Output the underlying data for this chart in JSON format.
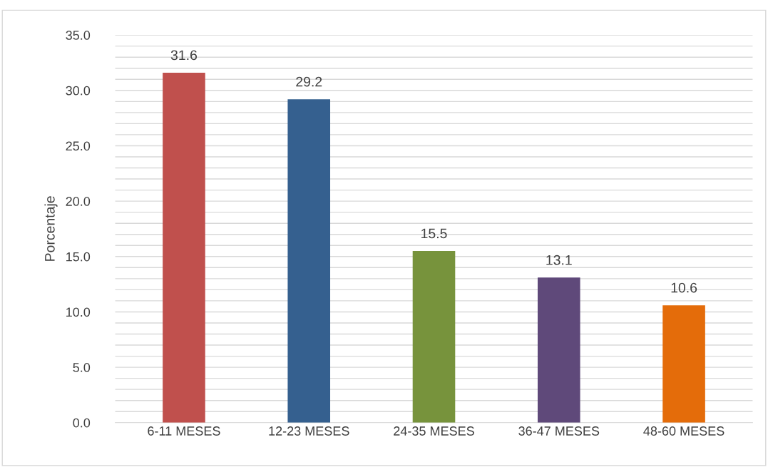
{
  "chart_data": {
    "type": "bar",
    "ylabel": "Porcentaje",
    "categories": [
      "6-11 MESES",
      "12-23 MESES",
      "24-35 MESES",
      "36-47 MESES",
      "48-60 MESES"
    ],
    "values": [
      31.6,
      29.2,
      15.5,
      13.1,
      10.6
    ],
    "colors": [
      "#c0504d",
      "#35608f",
      "#77933c",
      "#5f497a",
      "#e46c0a"
    ],
    "ylim": [
      0,
      35
    ],
    "yticks": [
      {
        "value": 0,
        "label": "0.0"
      },
      {
        "value": 1,
        "label": null
      },
      {
        "value": 2,
        "label": null
      },
      {
        "value": 3,
        "label": null
      },
      {
        "value": 4,
        "label": null
      },
      {
        "value": 5,
        "label": "5.0"
      },
      {
        "value": 6,
        "label": null
      },
      {
        "value": 7,
        "label": null
      },
      {
        "value": 8,
        "label": null
      },
      {
        "value": 9,
        "label": null
      },
      {
        "value": 10,
        "label": "10.0"
      },
      {
        "value": 11,
        "label": null
      },
      {
        "value": 12,
        "label": null
      },
      {
        "value": 13,
        "label": null
      },
      {
        "value": 14,
        "label": null
      },
      {
        "value": 15,
        "label": "15.0"
      },
      {
        "value": 16,
        "label": null
      },
      {
        "value": 17,
        "label": null
      },
      {
        "value": 18,
        "label": null
      },
      {
        "value": 19,
        "label": null
      },
      {
        "value": 20,
        "label": "20.0"
      },
      {
        "value": 21,
        "label": null
      },
      {
        "value": 22,
        "label": null
      },
      {
        "value": 23,
        "label": null
      },
      {
        "value": 24,
        "label": null
      },
      {
        "value": 25,
        "label": "25.0"
      },
      {
        "value": 26,
        "label": null
      },
      {
        "value": 27,
        "label": null
      },
      {
        "value": 28,
        "label": null
      },
      {
        "value": 29,
        "label": null
      },
      {
        "value": 30,
        "label": "30.0"
      },
      {
        "value": 31,
        "label": null
      },
      {
        "value": 32,
        "label": null
      },
      {
        "value": 33,
        "label": null
      },
      {
        "value": 34,
        "label": null
      },
      {
        "value": 35,
        "label": "35.0"
      }
    ],
    "grid": "y",
    "data_labels": true
  }
}
